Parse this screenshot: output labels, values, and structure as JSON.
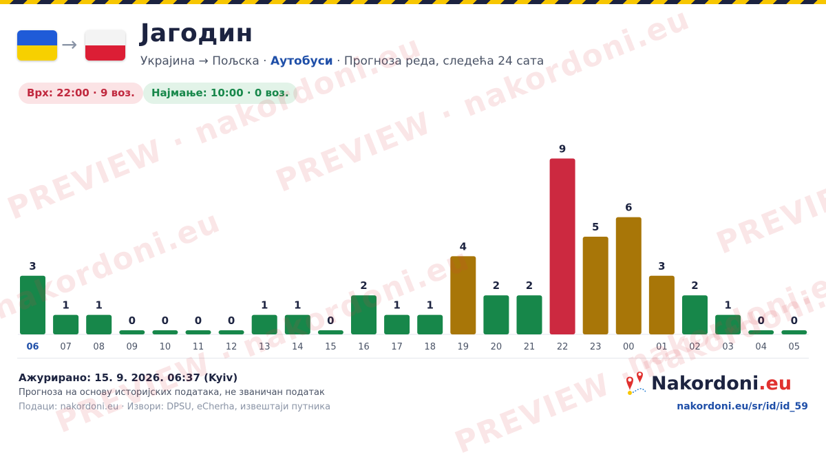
{
  "header": {
    "from_flag": "ukraine-flag",
    "to_flag": "poland-flag",
    "arrow": "→",
    "title": "Јагодин",
    "route": "Украјина → Пољска ·",
    "mode": "Аутобуси",
    "description": "· Прогноза реда, следећа 24 сата"
  },
  "badges": {
    "peak": "Врх: 22:00 · 9 воз.",
    "low": "Најмање: 10:00 · 0 воз."
  },
  "chart_data": {
    "type": "bar",
    "categories": [
      "06",
      "07",
      "08",
      "09",
      "10",
      "11",
      "12",
      "13",
      "14",
      "15",
      "16",
      "17",
      "18",
      "19",
      "20",
      "21",
      "22",
      "23",
      "00",
      "01",
      "02",
      "03",
      "04",
      "05"
    ],
    "values": [
      3,
      1,
      1,
      0,
      0,
      0,
      0,
      1,
      1,
      0,
      2,
      1,
      1,
      4,
      2,
      2,
      9,
      5,
      6,
      3,
      2,
      1,
      0,
      0
    ],
    "bar_status": [
      "low",
      "low",
      "low",
      "low",
      "low",
      "low",
      "low",
      "low",
      "low",
      "low",
      "low",
      "low",
      "low",
      "medium",
      "low",
      "low",
      "high",
      "medium",
      "medium",
      "medium",
      "low",
      "low",
      "low",
      "low"
    ],
    "colors": {
      "low": "#17874a",
      "medium": "#a87608",
      "high": "#cc2940",
      "current_tick": "#1f4fa8",
      "tick": "#4a5366",
      "value_label": "#1c2340"
    },
    "current_category": "06",
    "ylim": [
      0,
      9
    ],
    "grid": false,
    "title": "",
    "xlabel": "",
    "ylabel": ""
  },
  "footer": {
    "updated": "Ажурирано: 15. 9. 2026. 06:37 (Kyiv)",
    "note": "Прогноза на основу историјских података, не званичан податак",
    "sources": "Подаци: nakordoni.eu · Извори: DPSU, eCherha, извештаји путника",
    "brand_name": "Nakordoni",
    "brand_tld": ".eu",
    "brand_icon": "map-pin-icon",
    "url": "nakordoni.eu/sr/id/id_59"
  },
  "watermark": {
    "text_a": "PREVIEW · nakordoni.eu",
    "text_b": "nakordoni.eu"
  }
}
